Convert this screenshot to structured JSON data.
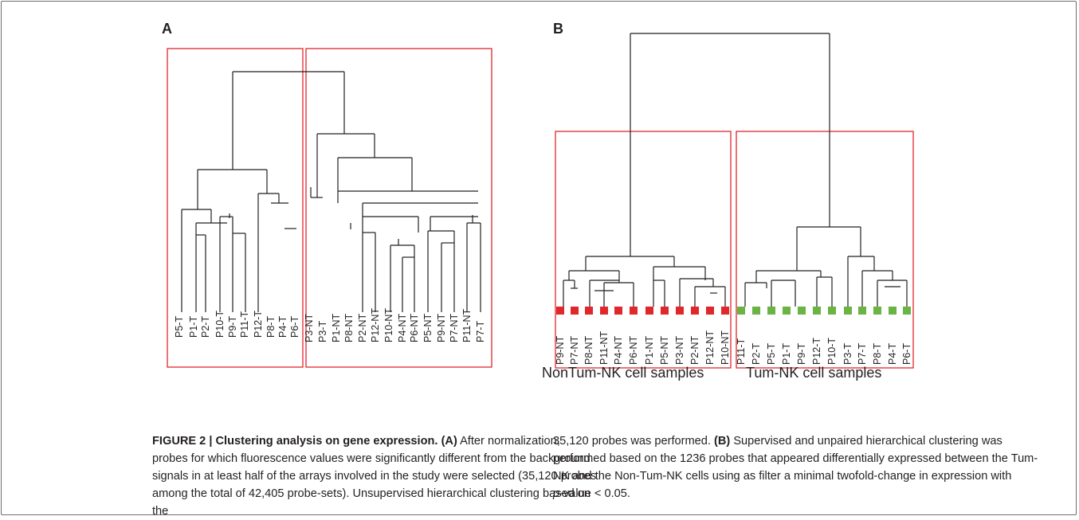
{
  "figure": {
    "panel_a": {
      "letter": "A",
      "left_group_leaves": [
        "P5-T",
        "P1-T",
        "P2-T",
        "P10-T",
        "P9-T",
        "P11-T",
        "P12-T",
        "P8-T",
        "P4-T",
        "P6-T"
      ],
      "right_group_leaves": [
        "P3-NT",
        "P3-T",
        "P1-NT",
        "P8-NT",
        "P2-NT",
        "P12-NT",
        "P10-NT",
        "P4-NT",
        "P6-NT",
        "P5-NT",
        "P9-NT",
        "P7-NT",
        "P11-NT",
        "P7-T"
      ]
    },
    "panel_b": {
      "letter": "B",
      "nontum_leaves": [
        "P9-NT",
        "P7-NT",
        "P8-NT",
        "P11-NT",
        "P4-NT",
        "P6-NT",
        "P1-NT",
        "P5-NT",
        "P3-NT",
        "P2-NT",
        "P12-NT",
        "P10-NT"
      ],
      "tum_leaves": [
        "P11-T",
        "P2-T",
        "P5-T",
        "P1-T",
        "P9-T",
        "P12-T",
        "P10-T",
        "P3-T",
        "P7-T",
        "P8-T",
        "P4-T",
        "P6-T"
      ],
      "nontum_label": "NonTum-NK cell samples",
      "tum_label": "Tum-NK cell samples"
    },
    "colors": {
      "box": "#e0272c",
      "nontum_marker": "#e0272c",
      "tum_marker": "#6ab344",
      "tree": "#231f20"
    }
  },
  "caption": {
    "label": "FIGURE 2 | Clustering analysis on gene expression.",
    "a_tag": "(A)",
    "left_text": " After normalization, probes for which fluorescence values were significantly different from the background signals in at least half of the arrays involved in the study were selected (35,120 probes among the total of 42,405 probe-sets). Unsupervised hierarchical clustering based on the",
    "right_text_1": "35,120 probes was performed. ",
    "b_tag": "(B)",
    "right_text_2": " Supervised and unpaired hierarchical clustering was performed based on the 1236 probes that appeared differentially expressed between the Tum-NK and the Non-Tum-NK cells using as filter a minimal twofold-change in expression with",
    "p_symbol": "p",
    "right_text_3": "-value < 0.05."
  }
}
